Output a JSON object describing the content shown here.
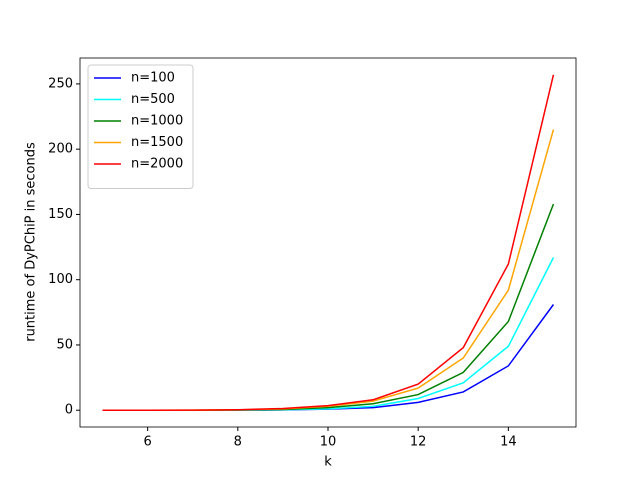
{
  "chart_data": {
    "type": "line",
    "x_label": "k",
    "y_label": "runtime of DyPChiP in seconds",
    "x": [
      5,
      6,
      7,
      8,
      9,
      10,
      11,
      12,
      13,
      14,
      15
    ],
    "series": [
      {
        "name": "n=100",
        "color": "#0000ff",
        "values": [
          0,
          0,
          0,
          0,
          0.3,
          0.8,
          2,
          6,
          14,
          34,
          81
        ]
      },
      {
        "name": "n=500",
        "color": "#00ffff",
        "values": [
          0,
          0,
          0,
          0.1,
          0.4,
          1,
          3,
          9,
          21,
          49,
          117
        ]
      },
      {
        "name": "n=1000",
        "color": "#008000",
        "values": [
          0,
          0,
          0,
          0.2,
          0.6,
          2,
          5,
          12,
          29,
          68,
          158
        ]
      },
      {
        "name": "n=1500",
        "color": "#ffa500",
        "values": [
          0,
          0,
          0.1,
          0.3,
          1,
          3,
          7,
          17,
          40,
          92,
          215
        ]
      },
      {
        "name": "n=2000",
        "color": "#ff0000",
        "values": [
          0,
          0,
          0.1,
          0.4,
          1.3,
          3.5,
          8,
          20,
          48,
          112,
          257
        ]
      }
    ],
    "xlim": [
      4.5,
      15.5
    ],
    "xticks": [
      6,
      8,
      10,
      12,
      14
    ],
    "ylim": [
      -12.85,
      269.85
    ],
    "yticks": [
      0,
      50,
      100,
      150,
      200,
      250
    ],
    "legend": "upper left",
    "grid": false
  }
}
